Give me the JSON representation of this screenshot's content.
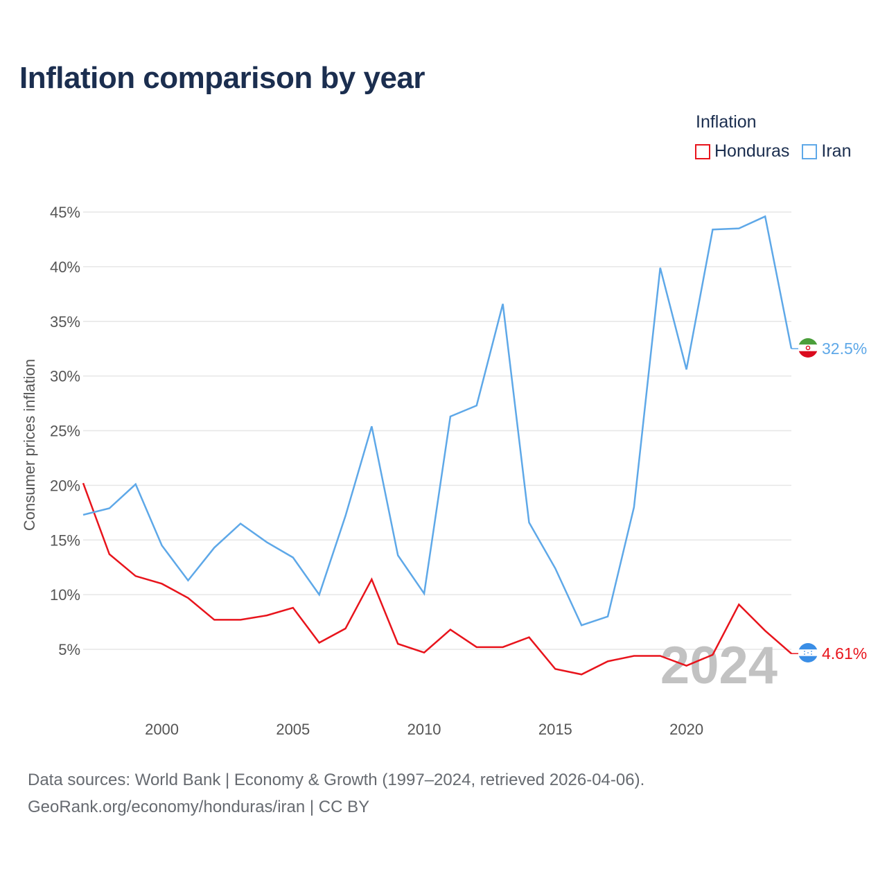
{
  "title": "Inflation comparison by year",
  "legend": {
    "title": "Inflation",
    "items": [
      {
        "name": "Honduras",
        "color": "#e8141c"
      },
      {
        "name": "Iran",
        "color": "#5ea8e8"
      }
    ]
  },
  "footer": {
    "line1": "Data sources: World Bank | Economy & Growth (1997–2024, retrieved 2026-04-06).",
    "line2": "GeoRank.org/economy/honduras/iran | CC BY"
  },
  "chart_data": {
    "type": "line",
    "title": "Inflation comparison by year",
    "xlabel": "",
    "ylabel": "Consumer prices inflation",
    "year_label": "2024",
    "xlim": [
      1997,
      2024
    ],
    "ylim": [
      0,
      46
    ],
    "xticks": [
      2000,
      2005,
      2010,
      2015,
      2020
    ],
    "xtick_labels": [
      "2000",
      "2005",
      "2010",
      "2015",
      "2020"
    ],
    "yticks": [
      5,
      10,
      15,
      20,
      25,
      30,
      35,
      40,
      45
    ],
    "ytick_labels": [
      "5%",
      "10%",
      "15%",
      "20%",
      "25%",
      "30%",
      "35%",
      "40%",
      "45%"
    ],
    "grid": true,
    "x": [
      1997,
      1998,
      1999,
      2000,
      2001,
      2002,
      2003,
      2004,
      2005,
      2006,
      2007,
      2008,
      2009,
      2010,
      2011,
      2012,
      2013,
      2014,
      2015,
      2016,
      2017,
      2018,
      2019,
      2020,
      2021,
      2022,
      2023,
      2024
    ],
    "series": [
      {
        "name": "Honduras",
        "color": "#e8141c",
        "end_label": "4.61%",
        "values": [
          20.2,
          13.7,
          11.7,
          11.0,
          9.7,
          7.7,
          7.7,
          8.1,
          8.8,
          5.6,
          6.9,
          11.4,
          5.5,
          4.7,
          6.8,
          5.2,
          5.2,
          6.1,
          3.2,
          2.7,
          3.9,
          4.4,
          4.4,
          3.5,
          4.5,
          9.1,
          6.7,
          4.61
        ]
      },
      {
        "name": "Iran",
        "color": "#5ea8e8",
        "end_label": "32.5%",
        "values": [
          17.3,
          17.9,
          20.1,
          14.5,
          11.3,
          14.3,
          16.5,
          14.8,
          13.4,
          10.0,
          17.2,
          25.4,
          13.6,
          10.1,
          26.3,
          27.3,
          36.6,
          16.6,
          12.4,
          7.2,
          8.0,
          18.0,
          39.9,
          30.6,
          43.4,
          43.5,
          44.6,
          32.5
        ]
      }
    ]
  }
}
